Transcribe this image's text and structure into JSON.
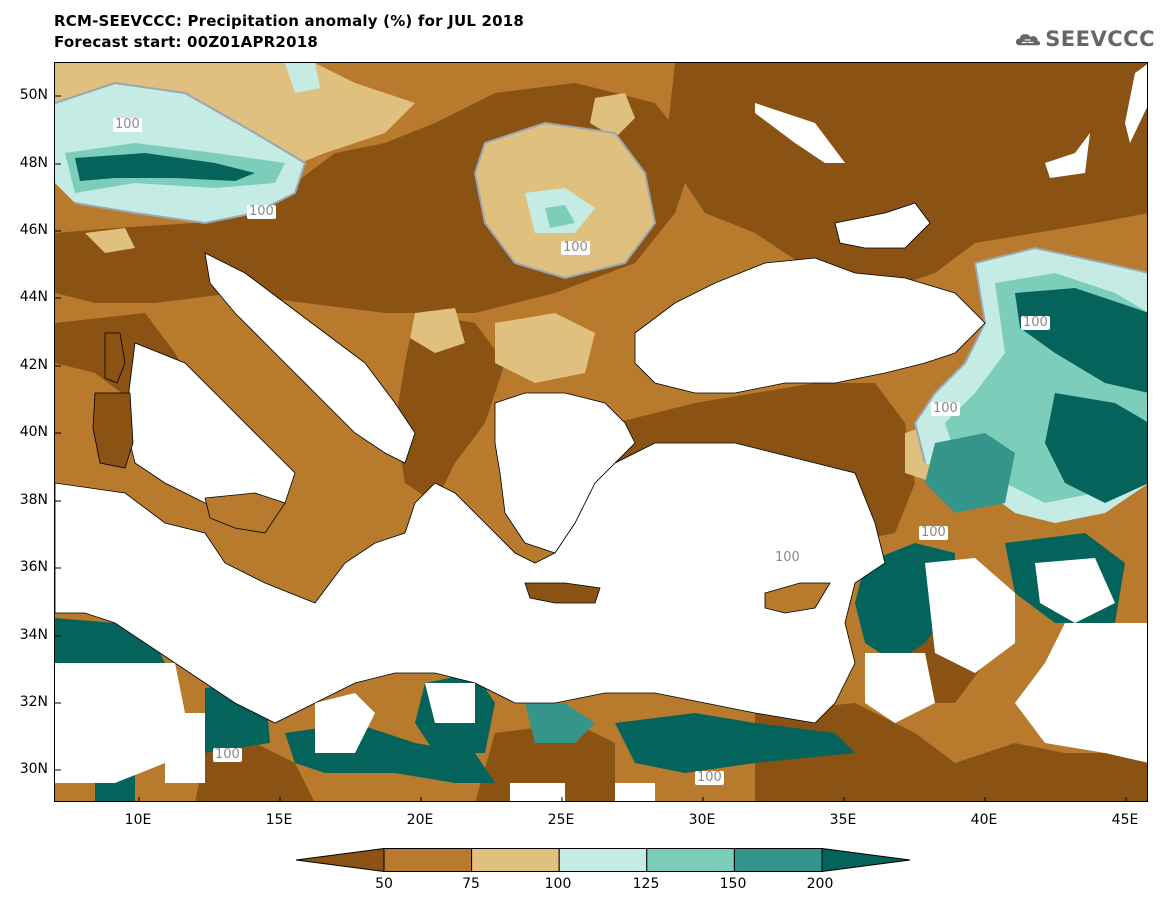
{
  "title": {
    "line1": "RCM-SEEVCCC: Precipitation anomaly (%) for JUL 2018",
    "line2": "Forecast start: 00Z01APR2018"
  },
  "logo": {
    "text": "SEEVCCC",
    "icon": "cloud-icon"
  },
  "axes": {
    "lat_labels": [
      "50N",
      "48N",
      "46N",
      "44N",
      "42N",
      "40N",
      "38N",
      "36N",
      "34N",
      "32N",
      "30N"
    ],
    "lon_labels": [
      "10E",
      "15E",
      "20E",
      "25E",
      "30E",
      "35E",
      "40E",
      "45E"
    ]
  },
  "contour_labels": [
    "100",
    "100",
    "100",
    "100",
    "100",
    "100",
    "100",
    "100",
    "100"
  ],
  "colorbar": {
    "labels": [
      "50",
      "75",
      "100",
      "125",
      "150",
      "200"
    ],
    "colors": [
      "#8a5213",
      "#b87a2d",
      "#e0c07e",
      "#c5ece4",
      "#7dcdbb",
      "#35958a",
      "#04645c"
    ]
  },
  "colors": {
    "sea": "#ffffff",
    "very_dry": "#8a5213",
    "dry": "#b87a2d",
    "slightly_dry": "#e0c07e",
    "slightly_wet": "#c5ece4",
    "wet": "#7dcdbb",
    "very_wet": "#35958a",
    "extreme_wet": "#04645c",
    "contour_100": "#9aa7b0"
  }
}
